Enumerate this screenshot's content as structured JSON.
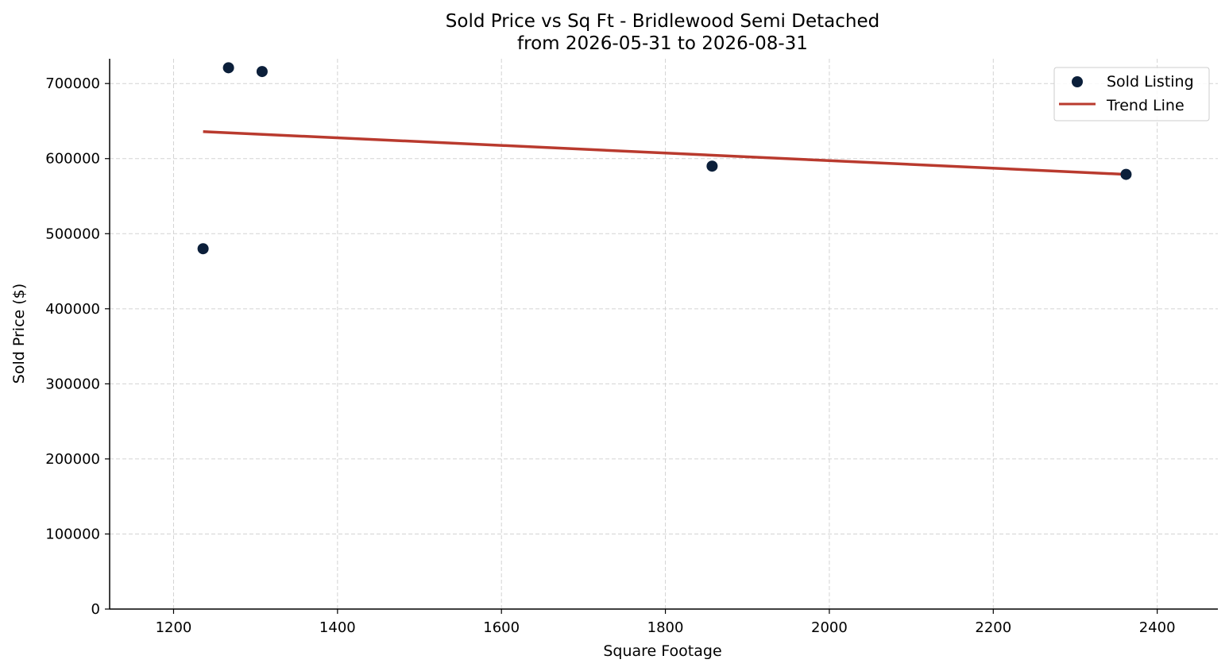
{
  "chart_data": {
    "type": "scatter",
    "title": "Sold Price vs Sq Ft - Bridlewood Semi Detached",
    "subtitle": "from 2026-05-31 to 2026-08-31",
    "xlabel": "Square Footage",
    "ylabel": "Sold Price ($)",
    "xlim": [
      1122,
      2474
    ],
    "ylim": [
      0,
      733000
    ],
    "x_ticks": [
      1200,
      1400,
      1600,
      1800,
      2000,
      2200,
      2400
    ],
    "y_ticks": [
      0,
      100000,
      200000,
      300000,
      400000,
      500000,
      600000,
      700000
    ],
    "grid": true,
    "legend_position": "top-right",
    "series": [
      {
        "name": "Sold Listing",
        "kind": "scatter",
        "color": "#0b1f3a",
        "points": [
          {
            "x": 1236,
            "y": 480000
          },
          {
            "x": 1267,
            "y": 721000
          },
          {
            "x": 1308,
            "y": 716000
          },
          {
            "x": 1857,
            "y": 590000
          },
          {
            "x": 2362,
            "y": 579000
          }
        ]
      },
      {
        "name": "Trend Line",
        "kind": "line",
        "color": "#b93a2e",
        "points": [
          {
            "x": 1236,
            "y": 636000
          },
          {
            "x": 2362,
            "y": 579000
          }
        ]
      }
    ]
  }
}
